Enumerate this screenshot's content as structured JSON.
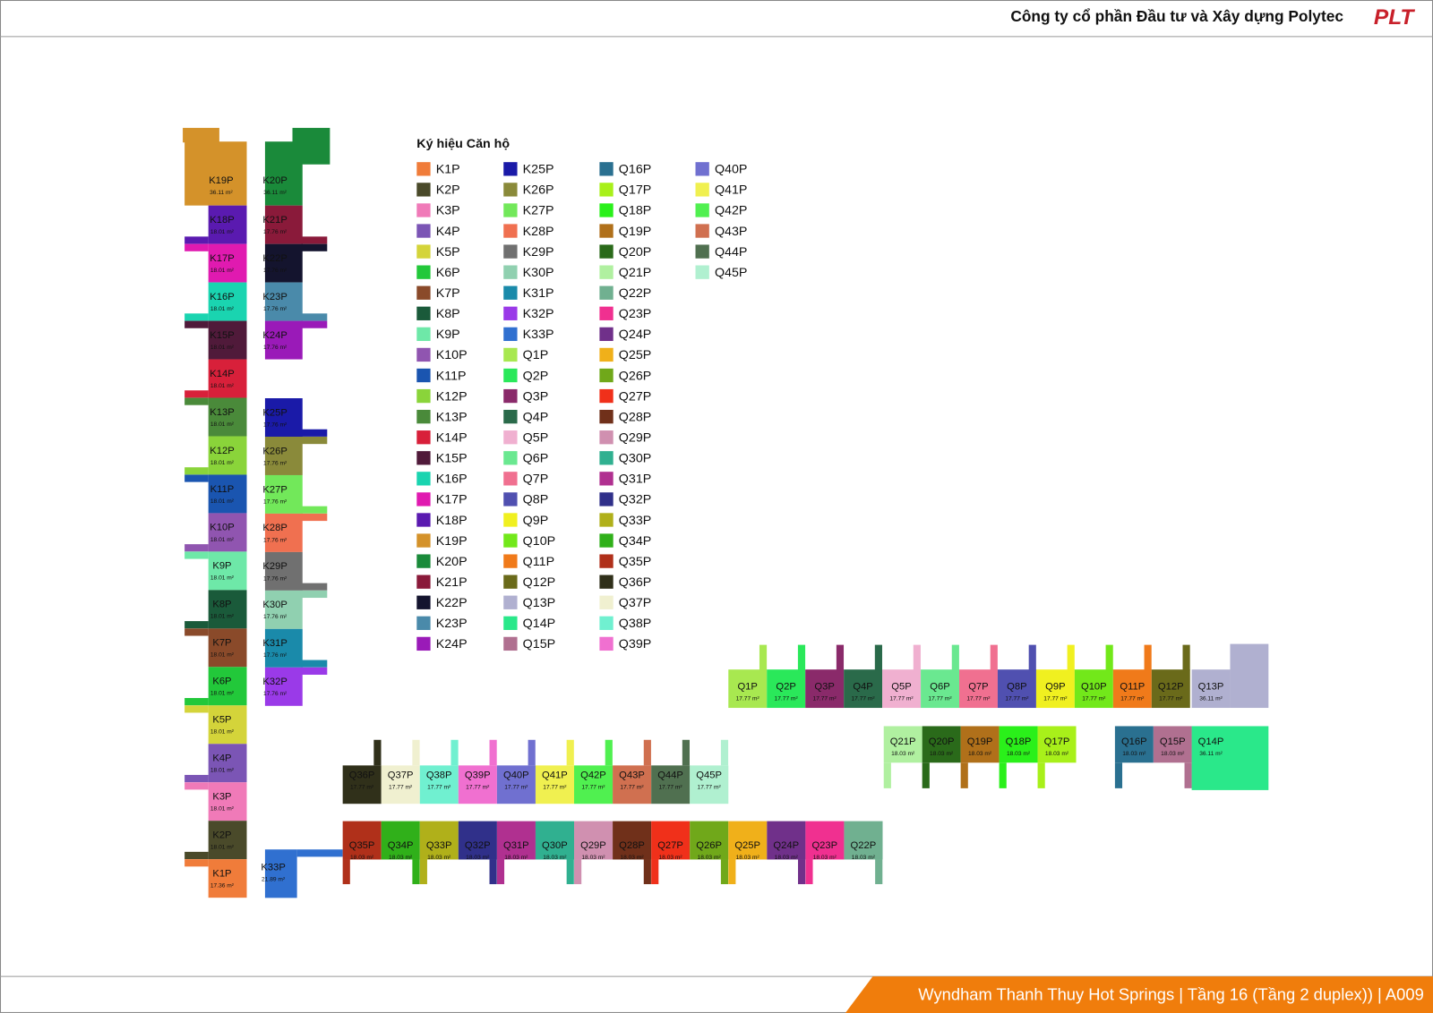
{
  "header": {
    "company": "Công ty cổ phần Đầu tư và Xây dựng Polytec",
    "logo": "PLT"
  },
  "footer": {
    "title": "Wyndham Thanh Thuy Hot Springs | Tầng 16 (Tầng 2 duplex)) | A009"
  },
  "legend": {
    "title": "Ký hiệu Căn hộ",
    "items": [
      {
        "name": "K1P",
        "color": "#f07c3a"
      },
      {
        "name": "K2P",
        "color": "#4a4a2a"
      },
      {
        "name": "K3P",
        "color": "#f07ab8"
      },
      {
        "name": "K4P",
        "color": "#7b55b5"
      },
      {
        "name": "K5P",
        "color": "#d4d43a"
      },
      {
        "name": "K6P",
        "color": "#22c83a"
      },
      {
        "name": "K7P",
        "color": "#8a4a2a"
      },
      {
        "name": "K8P",
        "color": "#1a5a3a"
      },
      {
        "name": "K9P",
        "color": "#6ee8a8"
      },
      {
        "name": "K10P",
        "color": "#9055b0"
      },
      {
        "name": "K11P",
        "color": "#1a55b0"
      },
      {
        "name": "K12P",
        "color": "#8ad43a"
      },
      {
        "name": "K13P",
        "color": "#4a8a3a"
      },
      {
        "name": "K14P",
        "color": "#d8203a"
      },
      {
        "name": "K15P",
        "color": "#501a3a"
      },
      {
        "name": "K16P",
        "color": "#1ad4b0"
      },
      {
        "name": "K17P",
        "color": "#e01ab0"
      },
      {
        "name": "K18P",
        "color": "#5a1ab0"
      },
      {
        "name": "K19P",
        "color": "#d4922a"
      },
      {
        "name": "K20P",
        "color": "#1a8a3a"
      },
      {
        "name": "K21P",
        "color": "#8a1a3a"
      },
      {
        "name": "K22P",
        "color": "#14142e"
      },
      {
        "name": "K23P",
        "color": "#4a8aaa"
      },
      {
        "name": "K24P",
        "color": "#9a1ab8"
      },
      {
        "name": "K25P",
        "color": "#1a1aa8"
      },
      {
        "name": "K26P",
        "color": "#8a8a3a"
      },
      {
        "name": "K27P",
        "color": "#72e85a"
      },
      {
        "name": "K28P",
        "color": "#f07050"
      },
      {
        "name": "K29P",
        "color": "#707070"
      },
      {
        "name": "K30P",
        "color": "#90d0b0"
      },
      {
        "name": "K31P",
        "color": "#1a8aaa"
      },
      {
        "name": "K32P",
        "color": "#9a3ae8"
      },
      {
        "name": "K33P",
        "color": "#3070d0"
      },
      {
        "name": "Q1P",
        "color": "#a8e850"
      },
      {
        "name": "Q2P",
        "color": "#2ae85a"
      },
      {
        "name": "Q3P",
        "color": "#8a2a6a"
      },
      {
        "name": "Q4P",
        "color": "#2a6a4a"
      },
      {
        "name": "Q5P",
        "color": "#f0b0d0"
      },
      {
        "name": "Q6P",
        "color": "#6ae890"
      },
      {
        "name": "Q7P",
        "color": "#f07090"
      },
      {
        "name": "Q8P",
        "color": "#5050b0"
      },
      {
        "name": "Q9P",
        "color": "#f0f020"
      },
      {
        "name": "Q10P",
        "color": "#72e81a"
      },
      {
        "name": "Q11P",
        "color": "#f07a1a"
      },
      {
        "name": "Q12P",
        "color": "#6a6a1a"
      },
      {
        "name": "Q13P",
        "color": "#b0b0d0"
      },
      {
        "name": "Q14P",
        "color": "#2ae88a"
      },
      {
        "name": "Q15P",
        "color": "#b07090"
      },
      {
        "name": "Q16P",
        "color": "#2a7090"
      },
      {
        "name": "Q17P",
        "color": "#a8f01a"
      },
      {
        "name": "Q18P",
        "color": "#2af01a"
      },
      {
        "name": "Q19P",
        "color": "#b0701a"
      },
      {
        "name": "Q20P",
        "color": "#2a6a1a"
      },
      {
        "name": "Q21P",
        "color": "#b0f0a0"
      },
      {
        "name": "Q22P",
        "color": "#70b090"
      },
      {
        "name": "Q23P",
        "color": "#f03090"
      },
      {
        "name": "Q24P",
        "color": "#70308a"
      },
      {
        "name": "Q25P",
        "color": "#f0b01a"
      },
      {
        "name": "Q26P",
        "color": "#70a81a"
      },
      {
        "name": "Q27P",
        "color": "#f0301a"
      },
      {
        "name": "Q28P",
        "color": "#70301a"
      },
      {
        "name": "Q29P",
        "color": "#d090b0"
      },
      {
        "name": "Q30P",
        "color": "#30b090"
      },
      {
        "name": "Q31P",
        "color": "#b03090"
      },
      {
        "name": "Q32P",
        "color": "#30308a"
      },
      {
        "name": "Q33P",
        "color": "#b0b01a"
      },
      {
        "name": "Q34P",
        "color": "#30b01a"
      },
      {
        "name": "Q35P",
        "color": "#b0301a"
      },
      {
        "name": "Q36P",
        "color": "#30301a"
      },
      {
        "name": "Q37P",
        "color": "#f0f0d0"
      },
      {
        "name": "Q38P",
        "color": "#70f0d0"
      },
      {
        "name": "Q39P",
        "color": "#f070d0"
      },
      {
        "name": "Q40P",
        "color": "#7070d0"
      },
      {
        "name": "Q41P",
        "color": "#f0f050"
      },
      {
        "name": "Q42P",
        "color": "#50f050"
      },
      {
        "name": "Q43P",
        "color": "#d07050"
      },
      {
        "name": "Q44P",
        "color": "#507050"
      },
      {
        "name": "Q45P",
        "color": "#b0f0d0"
      }
    ]
  },
  "plan": {
    "units": [
      {
        "label": "K19P",
        "area": "36.11 m²"
      },
      {
        "label": "K18P",
        "area": "18.01 m²"
      },
      {
        "label": "K17P",
        "area": "18.01 m²"
      },
      {
        "label": "K16P",
        "area": "18.01 m²"
      },
      {
        "label": "K15P",
        "area": "18.01 m²"
      },
      {
        "label": "K14P",
        "area": "18.01 m²"
      },
      {
        "label": "K13P",
        "area": "18.01 m²"
      },
      {
        "label": "K12P",
        "area": "18.01 m²"
      },
      {
        "label": "K11P",
        "area": "18.01 m²"
      },
      {
        "label": "K10P",
        "area": "18.01 m²"
      },
      {
        "label": "K9P",
        "area": "18.01 m²"
      },
      {
        "label": "K8P",
        "area": "18.01 m²"
      },
      {
        "label": "K7P",
        "area": "18.01 m²"
      },
      {
        "label": "K6P",
        "area": "18.01 m²"
      },
      {
        "label": "K5P",
        "area": "18.01 m²"
      },
      {
        "label": "K4P",
        "area": "18.01 m²"
      },
      {
        "label": "K3P",
        "area": "18.01 m²"
      },
      {
        "label": "K2P",
        "area": "18.01 m²"
      },
      {
        "label": "K1P",
        "area": "17.36 m²"
      },
      {
        "label": "K20P",
        "area": "36.11 m²"
      },
      {
        "label": "K21P",
        "area": "17.76 m²"
      },
      {
        "label": "K22P",
        "area": "17.76 m²"
      },
      {
        "label": "K23P",
        "area": "17.76 m²"
      },
      {
        "label": "K24P",
        "area": "17.76 m²"
      },
      {
        "label": "K25P",
        "area": "17.76 m²"
      },
      {
        "label": "K26P",
        "area": "17.76 m²"
      },
      {
        "label": "K27P",
        "area": "17.76 m²"
      },
      {
        "label": "K28P",
        "area": "17.76 m²"
      },
      {
        "label": "K29P",
        "area": "17.76 m²"
      },
      {
        "label": "K30P",
        "area": "17.76 m²"
      },
      {
        "label": "K31P",
        "area": "17.76 m²"
      },
      {
        "label": "K32P",
        "area": "17.76 m²"
      },
      {
        "label": "K33P",
        "area": "21.89 m²"
      },
      {
        "label": "Q1P",
        "area": "17.77 m²"
      },
      {
        "label": "Q2P",
        "area": "17.77 m²"
      },
      {
        "label": "Q3P",
        "area": "17.77 m²"
      },
      {
        "label": "Q4P",
        "area": "17.77 m²"
      },
      {
        "label": "Q5P",
        "area": "17.77 m²"
      },
      {
        "label": "Q6P",
        "area": "17.77 m²"
      },
      {
        "label": "Q7P",
        "area": "17.77 m²"
      },
      {
        "label": "Q8P",
        "area": "17.77 m²"
      },
      {
        "label": "Q9P",
        "area": "17.77 m²"
      },
      {
        "label": "Q10P",
        "area": "17.77 m²"
      },
      {
        "label": "Q11P",
        "area": "17.77 m²"
      },
      {
        "label": "Q12P",
        "area": "17.77 m²"
      },
      {
        "label": "Q13P",
        "area": "36.11 m²"
      },
      {
        "label": "Q21P",
        "area": "18.03 m²"
      },
      {
        "label": "Q20P",
        "area": "18.03 m²"
      },
      {
        "label": "Q19P",
        "area": "18.03 m²"
      },
      {
        "label": "Q18P",
        "area": "18.03 m²"
      },
      {
        "label": "Q17P",
        "area": "18.03 m²"
      },
      {
        "label": "Q16P",
        "area": "18.03 m²"
      },
      {
        "label": "Q15P",
        "area": "18.03 m²"
      },
      {
        "label": "Q14P",
        "area": "36.11 m²"
      },
      {
        "label": "Q36P",
        "area": "17.77 m²"
      },
      {
        "label": "Q37P",
        "area": "17.77 m²"
      },
      {
        "label": "Q38P",
        "area": "17.77 m²"
      },
      {
        "label": "Q39P",
        "area": "17.77 m²"
      },
      {
        "label": "Q40P",
        "area": "17.77 m²"
      },
      {
        "label": "Q41P",
        "area": "17.77 m²"
      },
      {
        "label": "Q42P",
        "area": "17.77 m²"
      },
      {
        "label": "Q43P",
        "area": "17.77 m²"
      },
      {
        "label": "Q44P",
        "area": "17.77 m²"
      },
      {
        "label": "Q45P",
        "area": "17.77 m²"
      },
      {
        "label": "Q35P",
        "area": "18.03 m²"
      },
      {
        "label": "Q34P",
        "area": "18.03 m²"
      },
      {
        "label": "Q33P",
        "area": "18.03 m²"
      },
      {
        "label": "Q32P",
        "area": "18.03 m²"
      },
      {
        "label": "Q31P",
        "area": "18.03 m²"
      },
      {
        "label": "Q30P",
        "area": "18.03 m²"
      },
      {
        "label": "Q29P",
        "area": "18.03 m²"
      },
      {
        "label": "Q28P",
        "area": "18.03 m²"
      },
      {
        "label": "Q27P",
        "area": "18.03 m²"
      },
      {
        "label": "Q26P",
        "area": "18.03 m²"
      },
      {
        "label": "Q25P",
        "area": "18.03 m²"
      },
      {
        "label": "Q24P",
        "area": "18.03 m²"
      },
      {
        "label": "Q23P",
        "area": "18.03 m²"
      },
      {
        "label": "Q22P",
        "area": "18.03 m²"
      }
    ]
  }
}
